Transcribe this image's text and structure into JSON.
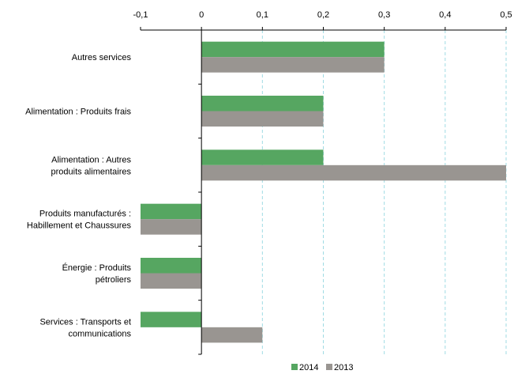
{
  "chart_data": {
    "type": "bar",
    "orientation": "horizontal",
    "categories": [
      [
        "Autres services"
      ],
      [
        "Alimentation : Produits frais"
      ],
      [
        "Alimentation : Autres",
        "produits alimentaires"
      ],
      [
        "Produits manufacturés :",
        "Habillement et Chaussures"
      ],
      [
        "Énergie : Produits",
        "pétroliers"
      ],
      [
        "Services : Transports et",
        "communications"
      ]
    ],
    "series": [
      {
        "name": "2014",
        "color": "#56a661",
        "values": [
          0.3,
          0.2,
          0.2,
          -0.1,
          -0.1,
          -0.1
        ]
      },
      {
        "name": "2013",
        "color": "#999591",
        "values": [
          0.3,
          0.2,
          0.5,
          -0.1,
          -0.1,
          0.1
        ]
      }
    ],
    "xlim": [
      -0.1,
      0.5
    ],
    "xticks": [
      -0.1,
      0,
      0.1,
      0.2,
      0.3,
      0.4,
      0.5
    ],
    "xtick_labels": [
      "-0,1",
      "0",
      "0,1",
      "0,2",
      "0,3",
      "0,4",
      "0,5"
    ],
    "x_axis_position": "top",
    "grid": "vertical dashed",
    "grid_color": "#9fdbe3",
    "legend_position": "bottom"
  }
}
